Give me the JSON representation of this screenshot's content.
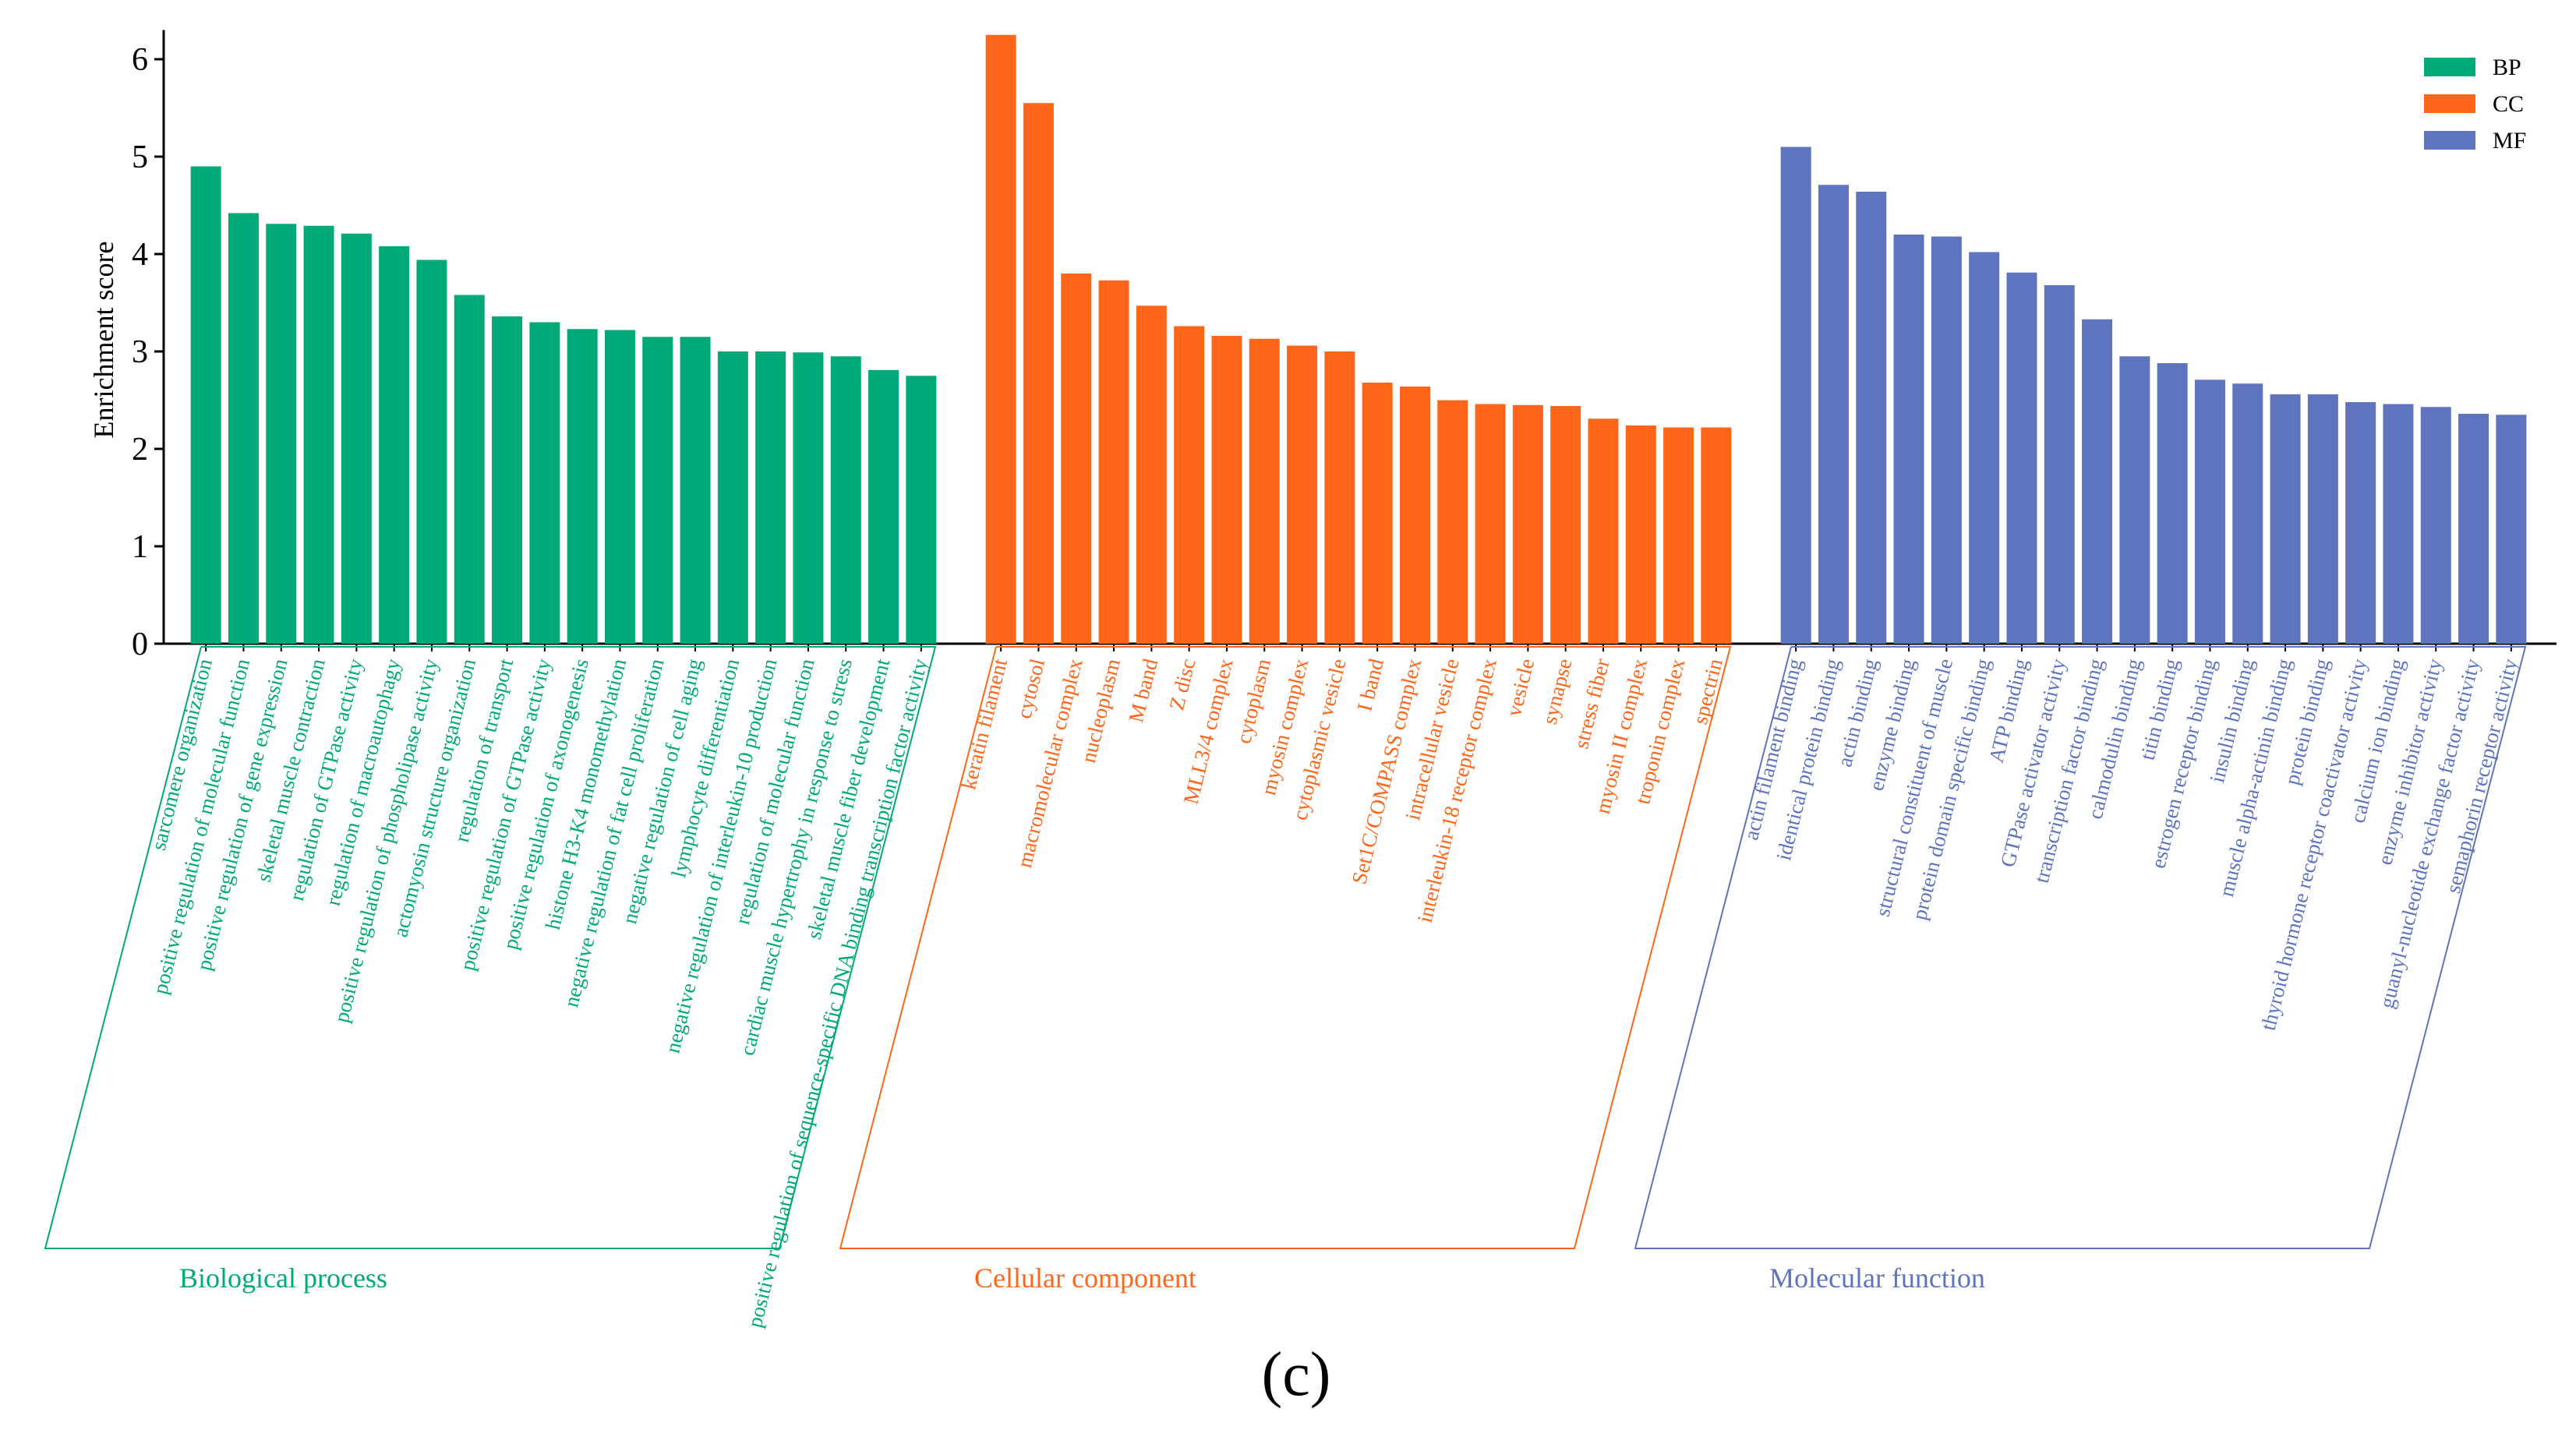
{
  "chart_data": {
    "type": "bar",
    "ylabel": "Enrichment score",
    "ylim": [
      0,
      6.3
    ],
    "yticks": [
      0,
      1,
      2,
      3,
      4,
      5,
      6
    ],
    "panel_label": "(c)",
    "colors": {
      "BP": "#00aa78",
      "CC": "#ff6619",
      "MF": "#5e74bf"
    },
    "legend": [
      {
        "key": "BP",
        "label": "BP"
      },
      {
        "key": "CC",
        "label": "CC"
      },
      {
        "key": "MF",
        "label": "MF"
      }
    ],
    "series": [
      {
        "key": "BP",
        "group_label": "Biological process",
        "categories": [
          "sarcomere organization",
          "positive regulation of molecular function",
          "positive regulation of gene expression",
          "skeletal muscle contraction",
          "regulation of GTPase activity",
          "regulation of macroautophagy",
          "positive regulation of phospholipase activity",
          "actomyosin structure organization",
          "regulation of transport",
          "positive regulation of GTPase activity",
          "positive regulation of axonogenesis",
          "histone H3-K4 monomethylation",
          "negative regulation of fat cell proliferation",
          "negative regulation of cell aging",
          "lymphocyte differentiation",
          "negative regulation of interleukin-10 production",
          "regulation of molecular function",
          "cardiac muscle hypertrophy in response to stress",
          "skeletal muscle fiber development",
          "positive regulation of sequence-specific DNA binding transcription factor activity"
        ],
        "values": [
          4.9,
          4.42,
          4.31,
          4.29,
          4.21,
          4.08,
          3.94,
          3.58,
          3.36,
          3.3,
          3.23,
          3.22,
          3.15,
          3.15,
          3.0,
          3.0,
          2.99,
          2.95,
          2.81,
          2.75
        ]
      },
      {
        "key": "CC",
        "group_label": "Cellular component",
        "categories": [
          "keratin filament",
          "cytosol",
          "macromolecular complex",
          "nucleoplasm",
          "M band",
          "Z disc",
          "MLL3/4 complex",
          "cytoplasm",
          "myosin complex",
          "cytoplasmic vesicle",
          "I band",
          "Set1C/COMPASS complex",
          "intracellular vesicle",
          "interleukin-18 receptor complex",
          "vesicle",
          "synapse",
          "stress fiber",
          "myosin II complex",
          "troponin complex",
          "spectrin"
        ],
        "values": [
          6.25,
          5.55,
          3.8,
          3.73,
          3.47,
          3.26,
          3.16,
          3.13,
          3.06,
          3.0,
          2.68,
          2.64,
          2.5,
          2.46,
          2.45,
          2.44,
          2.31,
          2.24,
          2.22,
          2.22
        ]
      },
      {
        "key": "MF",
        "group_label": "Molecular function",
        "categories": [
          "actin filament binding",
          "identical protein binding",
          "actin binding",
          "enzyme binding",
          "structural constituent of muscle",
          "protein domain specific binding",
          "ATP binding",
          "GTPase activator activity",
          "transcription factor binding",
          "calmodulin binding",
          "titin binding",
          "estrogen receptor binding",
          "insulin binding",
          "muscle alpha-actinin binding",
          "protein binding",
          "thyroid hormone receptor coactivator activity",
          "calcium ion binding",
          "enzyme inhibitor activity",
          "guanyl-nucleotide exchange factor activity",
          "semaphorin receptor activity"
        ],
        "values": [
          5.1,
          4.71,
          4.64,
          4.2,
          4.18,
          4.02,
          3.81,
          3.68,
          3.33,
          2.95,
          2.88,
          2.71,
          2.67,
          2.56,
          2.56,
          2.48,
          2.46,
          2.43,
          2.36,
          2.35
        ]
      }
    ]
  }
}
